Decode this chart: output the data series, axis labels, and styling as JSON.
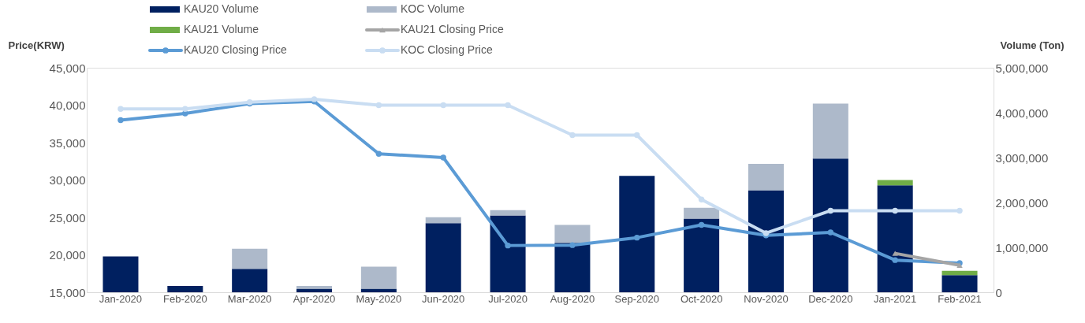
{
  "chart_data": {
    "type": "bar",
    "stacked": true,
    "ylabel": "Price(KRW)",
    "y2label": "Volume (Ton)",
    "categories": [
      "Jan-2020",
      "Feb-2020",
      "Mar-2020",
      "Apr-2020",
      "May-2020",
      "Jun-2020",
      "Jul-2020",
      "Aug-2020",
      "Sep-2020",
      "Oct-2020",
      "Nov-2020",
      "Dec-2020",
      "Jan-2021",
      "Feb-2021"
    ],
    "series": [
      {
        "name": "KAU20 Volume",
        "axis": "y2",
        "color": "#002060",
        "values": [
          800000,
          140000,
          520000,
          80000,
          80000,
          1540000,
          1710000,
          1100000,
          2590000,
          1640000,
          2270000,
          2980000,
          2380000,
          380000
        ]
      },
      {
        "name": "KOC Volume",
        "axis": "y2",
        "color": "#adb9ca",
        "values": [
          null,
          null,
          450000,
          60000,
          490000,
          130000,
          120000,
          400000,
          null,
          240000,
          590000,
          1220000,
          null,
          null
        ]
      },
      {
        "name": "KAU21 Volume",
        "axis": "y2",
        "color": "#70ad47",
        "values": [
          null,
          null,
          null,
          null,
          null,
          null,
          null,
          null,
          null,
          null,
          null,
          null,
          120000,
          100000
        ]
      },
      {
        "name": "KAU20 Closing Price",
        "type": "line",
        "axis": "y",
        "color": "#5b9bd5",
        "marker": "circle",
        "values": [
          38000,
          38900,
          40200,
          40500,
          33500,
          33000,
          21250,
          21300,
          22300,
          24000,
          22600,
          23000,
          19300,
          18900
        ]
      },
      {
        "name": "KOC Closing Price",
        "type": "line",
        "axis": "y",
        "color": "#c9ddf2",
        "marker": "circle",
        "values": [
          39500,
          39500,
          40400,
          40800,
          40000,
          40000,
          40000,
          36000,
          36000,
          27400,
          22900,
          25900,
          25900,
          25900
        ]
      },
      {
        "name": "KAU21 Closing Price",
        "type": "line",
        "axis": "y",
        "color": "#a5a5a5",
        "marker": "triangle",
        "values": [
          null,
          null,
          null,
          null,
          null,
          null,
          null,
          null,
          null,
          null,
          null,
          null,
          20200,
          18600
        ]
      }
    ],
    "ylim": [
      15000,
      45000
    ],
    "yticks": [
      {
        "value": 15000,
        "label": "15,000"
      },
      {
        "value": 20000,
        "label": "20,000"
      },
      {
        "value": 25000,
        "label": "25,000"
      },
      {
        "value": 30000,
        "label": "30,000"
      },
      {
        "value": 35000,
        "label": "35,000"
      },
      {
        "value": 40000,
        "label": "40,000"
      },
      {
        "value": 45000,
        "label": "45,000"
      }
    ],
    "y2lim": [
      0,
      5000000
    ],
    "y2ticks": [
      0,
      {
        "value": 1000000,
        "label": "1,000,000"
      },
      {
        "value": 2000000,
        "label": "2,000,000"
      },
      {
        "value": 3000000,
        "label": "3,000,000"
      },
      {
        "value": 4000000,
        "label": "4,000,000"
      },
      {
        "value": 5000000,
        "label": "5,000,000"
      }
    ],
    "grid": false,
    "legend": "top"
  }
}
